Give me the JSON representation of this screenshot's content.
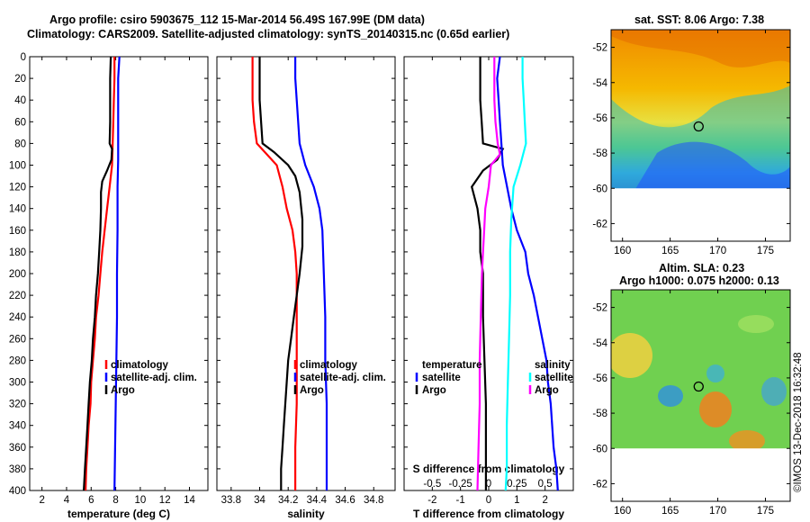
{
  "title_line1": "Argo profile: csiro 5903675_112 15-Mar-2014 56.49S 167.99E (DM data)",
  "title_line2": "Climatology: CARS2009. Satellite-adjusted climatology: synTS_20140315.nc (0.65d earlier)",
  "watermark": "©IMOS 13-Dec-2018 16:32:48",
  "colors": {
    "red": "#ff0000",
    "blue": "#0000ff",
    "black": "#000000",
    "magenta": "#ff00ff",
    "cyan": "#00ffff"
  },
  "legend": {
    "climatology": "climatology",
    "satellite_adj": "satellite-adj. clim.",
    "argo": "Argo",
    "temperature": "temperature",
    "salinity": "salinity",
    "satellite": "satellite"
  },
  "chart_data": [
    {
      "type": "line",
      "id": "temperature",
      "xlabel": "temperature (deg C)",
      "ylabel": "",
      "xlim": [
        1,
        15.5
      ],
      "ylim": [
        400,
        0
      ],
      "xticks": [
        2,
        4,
        6,
        8,
        10,
        12,
        14
      ],
      "yticks": [
        0,
        20,
        40,
        60,
        80,
        100,
        120,
        140,
        160,
        180,
        200,
        220,
        240,
        260,
        280,
        300,
        320,
        340,
        360,
        380,
        400
      ],
      "series": [
        {
          "name": "climatology",
          "color": "red",
          "points": [
            [
              7.9,
              0
            ],
            [
              7.9,
              20
            ],
            [
              7.85,
              40
            ],
            [
              7.8,
              60
            ],
            [
              7.75,
              80
            ],
            [
              7.7,
              100
            ],
            [
              7.5,
              120
            ],
            [
              7.3,
              140
            ],
            [
              7.1,
              160
            ],
            [
              6.9,
              180
            ],
            [
              6.75,
              200
            ],
            [
              6.6,
              220
            ],
            [
              6.4,
              240
            ],
            [
              6.3,
              260
            ],
            [
              6.15,
              280
            ],
            [
              6.0,
              300
            ],
            [
              5.95,
              320
            ],
            [
              5.8,
              340
            ],
            [
              5.7,
              360
            ],
            [
              5.6,
              380
            ],
            [
              5.55,
              400
            ]
          ]
        },
        {
          "name": "satellite-adj. clim.",
          "color": "blue",
          "points": [
            [
              8.3,
              0
            ],
            [
              8.2,
              20
            ],
            [
              8.2,
              40
            ],
            [
              8.2,
              60
            ],
            [
              8.2,
              80
            ],
            [
              8.2,
              95
            ],
            [
              8.15,
              120
            ],
            [
              8.15,
              160
            ],
            [
              8.1,
              200
            ],
            [
              8.1,
              240
            ],
            [
              8.05,
              280
            ],
            [
              8.0,
              320
            ],
            [
              7.95,
              360
            ],
            [
              7.9,
              400
            ]
          ]
        },
        {
          "name": "Argo",
          "color": "black",
          "points": [
            [
              7.6,
              0
            ],
            [
              7.55,
              20
            ],
            [
              7.55,
              40
            ],
            [
              7.55,
              60
            ],
            [
              7.5,
              80
            ],
            [
              7.7,
              85
            ],
            [
              7.65,
              95
            ],
            [
              7.3,
              105
            ],
            [
              6.9,
              115
            ],
            [
              6.8,
              125
            ],
            [
              6.8,
              140
            ],
            [
              6.75,
              160
            ],
            [
              6.65,
              180
            ],
            [
              6.55,
              200
            ],
            [
              6.4,
              220
            ],
            [
              6.3,
              240
            ],
            [
              6.15,
              260
            ],
            [
              6.05,
              280
            ],
            [
              5.9,
              300
            ],
            [
              5.8,
              320
            ],
            [
              5.7,
              340
            ],
            [
              5.6,
              360
            ],
            [
              5.5,
              380
            ],
            [
              5.4,
              400
            ]
          ]
        }
      ]
    },
    {
      "type": "line",
      "id": "salinity",
      "xlabel": "salinity",
      "ylabel": "",
      "xlim": [
        33.7,
        34.95
      ],
      "ylim": [
        400,
        0
      ],
      "xticks": [
        33.8,
        34,
        34.2,
        34.4,
        34.6,
        34.8
      ],
      "xtick_labels": [
        "33.8",
        "34",
        "34.2",
        "34.4",
        "34.6",
        "34.8"
      ],
      "series": [
        {
          "name": "climatology",
          "color": "red",
          "points": [
            [
              33.95,
              0
            ],
            [
              33.95,
              20
            ],
            [
              33.95,
              40
            ],
            [
              33.96,
              60
            ],
            [
              33.98,
              80
            ],
            [
              34.05,
              90
            ],
            [
              34.12,
              100
            ],
            [
              34.16,
              120
            ],
            [
              34.19,
              140
            ],
            [
              34.23,
              160
            ],
            [
              34.25,
              180
            ],
            [
              34.26,
              200
            ],
            [
              34.26,
              240
            ],
            [
              34.26,
              280
            ],
            [
              34.26,
              320
            ],
            [
              34.25,
              360
            ],
            [
              34.25,
              400
            ]
          ]
        },
        {
          "name": "satellite-adj. clim.",
          "color": "blue",
          "points": [
            [
              34.25,
              0
            ],
            [
              34.25,
              20
            ],
            [
              34.26,
              40
            ],
            [
              34.27,
              60
            ],
            [
              34.28,
              80
            ],
            [
              34.32,
              100
            ],
            [
              34.38,
              120
            ],
            [
              34.42,
              140
            ],
            [
              34.44,
              160
            ],
            [
              34.45,
              200
            ],
            [
              34.46,
              240
            ],
            [
              34.46,
              280
            ],
            [
              34.47,
              320
            ],
            [
              34.47,
              360
            ],
            [
              34.47,
              400
            ]
          ]
        },
        {
          "name": "Argo",
          "color": "black",
          "points": [
            [
              34.0,
              0
            ],
            [
              34.0,
              20
            ],
            [
              34.0,
              40
            ],
            [
              34.01,
              60
            ],
            [
              34.02,
              80
            ],
            [
              34.1,
              88
            ],
            [
              34.2,
              100
            ],
            [
              34.25,
              110
            ],
            [
              34.28,
              125
            ],
            [
              34.3,
              150
            ],
            [
              34.3,
              175
            ],
            [
              34.28,
              200
            ],
            [
              34.26,
              220
            ],
            [
              34.24,
              240
            ],
            [
              34.22,
              260
            ],
            [
              34.2,
              280
            ],
            [
              34.19,
              300
            ],
            [
              34.18,
              320
            ],
            [
              34.17,
              340
            ],
            [
              34.16,
              360
            ],
            [
              34.15,
              380
            ],
            [
              34.15,
              400
            ]
          ]
        }
      ]
    },
    {
      "type": "line",
      "id": "difference",
      "xlabel": "T difference from climatology",
      "ylabel": "",
      "xlim": [
        -3,
        3
      ],
      "ylim": [
        400,
        0
      ],
      "xticks": [
        -2,
        -1,
        0,
        1,
        2
      ],
      "x2label": "S difference from climatology",
      "x2ticks": [
        -0.5,
        -0.25,
        0,
        0.25,
        0.5
      ],
      "x2tick_labels": [
        "-0.5",
        "-0.25",
        "0",
        "0.25",
        "0.5"
      ],
      "x2lim": [
        -0.75,
        0.75
      ],
      "series": [
        {
          "name": "temperature Argo",
          "color": "black",
          "axis": "T",
          "points": [
            [
              -0.3,
              0
            ],
            [
              -0.3,
              20
            ],
            [
              -0.3,
              40
            ],
            [
              -0.25,
              60
            ],
            [
              -0.2,
              80
            ],
            [
              0.5,
              85
            ],
            [
              0.3,
              95
            ],
            [
              -0.2,
              105
            ],
            [
              -0.6,
              120
            ],
            [
              -0.4,
              140
            ],
            [
              -0.3,
              160
            ],
            [
              -0.3,
              180
            ],
            [
              -0.2,
              200
            ],
            [
              -0.2,
              240
            ],
            [
              -0.15,
              280
            ],
            [
              -0.1,
              320
            ],
            [
              -0.1,
              360
            ],
            [
              -0.1,
              400
            ]
          ]
        },
        {
          "name": "temperature satellite",
          "color": "blue",
          "axis": "T",
          "points": [
            [
              0.4,
              0
            ],
            [
              0.3,
              20
            ],
            [
              0.35,
              40
            ],
            [
              0.4,
              60
            ],
            [
              0.45,
              80
            ],
            [
              0.5,
              100
            ],
            [
              0.65,
              120
            ],
            [
              0.8,
              140
            ],
            [
              1.0,
              160
            ],
            [
              1.3,
              180
            ],
            [
              1.4,
              200
            ],
            [
              1.6,
              220
            ],
            [
              1.75,
              240
            ],
            [
              1.9,
              260
            ],
            [
              2.05,
              280
            ],
            [
              2.1,
              300
            ],
            [
              2.2,
              320
            ],
            [
              2.25,
              340
            ],
            [
              2.3,
              360
            ],
            [
              2.4,
              380
            ],
            [
              2.45,
              400
            ]
          ]
        },
        {
          "name": "salinity Argo",
          "color": "magenta",
          "axis": "S",
          "points": [
            [
              0.05,
              0
            ],
            [
              0.05,
              20
            ],
            [
              0.05,
              40
            ],
            [
              0.06,
              60
            ],
            [
              0.08,
              80
            ],
            [
              0.1,
              90
            ],
            [
              0.02,
              100
            ],
            [
              0.0,
              120
            ],
            [
              -0.03,
              140
            ],
            [
              -0.04,
              160
            ],
            [
              -0.05,
              180
            ],
            [
              -0.06,
              200
            ],
            [
              -0.07,
              240
            ],
            [
              -0.08,
              280
            ],
            [
              -0.08,
              320
            ],
            [
              -0.09,
              360
            ],
            [
              -0.1,
              400
            ]
          ]
        },
        {
          "name": "salinity satellite",
          "color": "cyan",
          "axis": "S",
          "points": [
            [
              0.3,
              0
            ],
            [
              0.3,
              20
            ],
            [
              0.31,
              40
            ],
            [
              0.32,
              60
            ],
            [
              0.33,
              80
            ],
            [
              0.28,
              100
            ],
            [
              0.22,
              120
            ],
            [
              0.2,
              150
            ],
            [
              0.19,
              180
            ],
            [
              0.19,
              220
            ],
            [
              0.18,
              260
            ],
            [
              0.17,
              300
            ],
            [
              0.16,
              340
            ],
            [
              0.16,
              380
            ],
            [
              0.15,
              400
            ]
          ]
        }
      ]
    },
    {
      "type": "heatmap",
      "id": "sst_map",
      "title": "sat. SST: 8.06 Argo: 7.38",
      "xlim": [
        158.8,
        177.6
      ],
      "ylim": [
        -63,
        -51
      ],
      "xticks": [
        160,
        165,
        170,
        175
      ],
      "yticks": [
        -52,
        -54,
        -56,
        -58,
        -60,
        -62
      ],
      "marker": {
        "lon": 167.99,
        "lat": -56.49
      },
      "data_top_lat": -51.2,
      "data_bottom_lat": -60
    },
    {
      "type": "heatmap",
      "id": "sla_map",
      "title": "Altim. SLA: 0.23",
      "title2": "Argo h1000: 0.075 h2000: 0.13",
      "xlim": [
        158.8,
        177.6
      ],
      "ylim": [
        -63,
        -51
      ],
      "xticks": [
        160,
        165,
        170,
        175
      ],
      "yticks": [
        -52,
        -54,
        -56,
        -58,
        -60,
        -62
      ],
      "marker": {
        "lon": 167.99,
        "lat": -56.49
      },
      "data_top_lat": -51.2,
      "data_bottom_lat": -60
    }
  ]
}
